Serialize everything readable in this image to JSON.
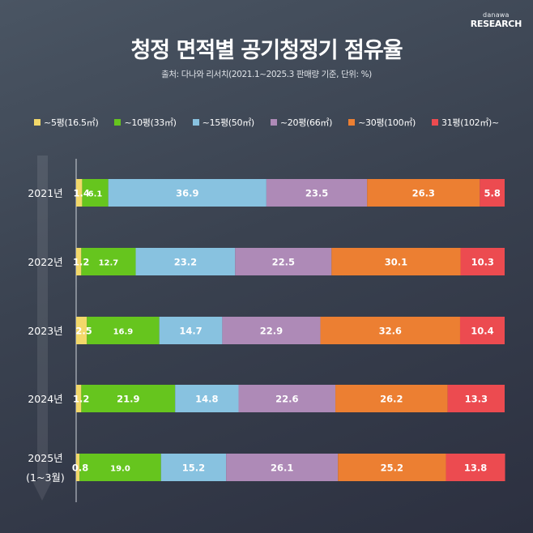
{
  "logo": {
    "top": "danawa",
    "bottom": "RESEARCH"
  },
  "title": "청정 면적별 공기청정기 점유율",
  "subtitle": "출처: 다나와 리서치(2021.1~2025.3 판매량 기준, 단위: %)",
  "chart_data": {
    "type": "bar",
    "orientation": "horizontal",
    "stacked": true,
    "unit": "%",
    "xlim": [
      0,
      100
    ],
    "title": "청정 면적별 공기청정기 점유율",
    "categories": [
      {
        "label": "2021년",
        "sub": ""
      },
      {
        "label": "2022년",
        "sub": ""
      },
      {
        "label": "2023년",
        "sub": ""
      },
      {
        "label": "2024년",
        "sub": ""
      },
      {
        "label": "2025년",
        "sub": "(1~3월)"
      }
    ],
    "series": [
      {
        "name": "~5평(16.5㎡)",
        "color": "#f2d86a",
        "values": [
          1.4,
          1.2,
          2.5,
          1.2,
          0.8
        ],
        "labels": [
          "1.4",
          "1.2",
          "2.5",
          "1.2",
          "0.8"
        ]
      },
      {
        "name": "~10평(33㎡)",
        "color": "#66c51e",
        "values": [
          6.1,
          12.7,
          16.9,
          21.9,
          19.0
        ],
        "labels": [
          "6.1",
          "12.7",
          "16.9",
          "21.9",
          "19.0"
        ]
      },
      {
        "name": "~15평(50㎡)",
        "color": "#88c2e0",
        "values": [
          36.9,
          23.2,
          14.7,
          14.8,
          15.2
        ],
        "labels": [
          "36.9",
          "23.2",
          "14.7",
          "14.8",
          "15.2"
        ]
      },
      {
        "name": "~20평(66㎡)",
        "color": "#ae8ab7",
        "values": [
          23.5,
          22.5,
          22.9,
          22.6,
          26.1
        ],
        "labels": [
          "23.5",
          "22.5",
          "22.9",
          "22.6",
          "26.1"
        ]
      },
      {
        "name": "~30평(100㎡)",
        "color": "#ec7f32",
        "values": [
          26.3,
          30.1,
          32.6,
          26.2,
          25.2
        ],
        "labels": [
          "26.3",
          "30.1",
          "32.6",
          "26.2",
          "25.2"
        ]
      },
      {
        "name": "31평(102㎡)~",
        "color": "#ec4b50",
        "values": [
          5.8,
          10.3,
          10.4,
          13.3,
          13.8
        ],
        "labels": [
          "5.8",
          "10.3",
          "10.4",
          "13.3",
          "13.8"
        ]
      }
    ],
    "legend": "top-center",
    "grid": false
  }
}
